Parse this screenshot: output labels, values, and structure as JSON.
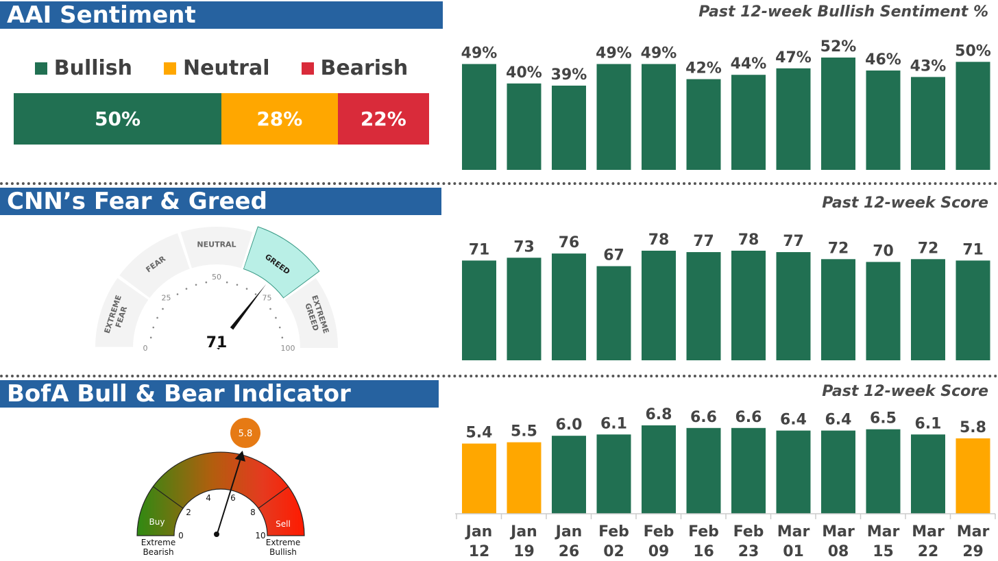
{
  "sections": {
    "aai": {
      "header": "AAI Sentiment",
      "chart_title": "Past 12-week Bullish Sentiment %",
      "legend": [
        {
          "label": "Bullish",
          "color": "#217052"
        },
        {
          "label": "Neutral",
          "color": "#ffa700"
        },
        {
          "label": "Bearish",
          "color": "#d92b3a"
        }
      ],
      "stacked": [
        {
          "label": "50%",
          "value": 50,
          "color": "#217052"
        },
        {
          "label": "28%",
          "value": 28,
          "color": "#ffa700"
        },
        {
          "label": "22%",
          "value": 22,
          "color": "#d92b3a"
        }
      ]
    },
    "cnn": {
      "header": "CNN’s Fear & Greed",
      "chart_title": "Past 12-week Score",
      "gauge": {
        "value": 71,
        "value_label": "71",
        "ticks": [
          "0",
          "25",
          "50",
          "75",
          "100"
        ],
        "zones": [
          "EXTREME FEAR",
          "FEAR",
          "NEUTRAL",
          "GREED",
          "EXTREME GREED"
        ],
        "active_zone": "GREED",
        "active_color": "#b9efe6"
      }
    },
    "bofa": {
      "header": "BofA Bull & Bear Indicator",
      "chart_title": "Past 12-week Score",
      "gauge": {
        "value": 5.8,
        "value_label": "5.8",
        "ticks": [
          "0",
          "2",
          "4",
          "6",
          "8",
          "10"
        ],
        "buy_label": "Buy",
        "sell_label": "Sell",
        "left_caption": "Extreme Bearish",
        "right_caption": "Extreme Bullish"
      }
    }
  },
  "colors": {
    "bar_green": "#217052",
    "bar_yellow": "#ffa700",
    "header_blue": "#2662a0"
  },
  "chart_data": [
    {
      "type": "bar",
      "title": "Past 12-week Bullish Sentiment %",
      "categories": [
        "Jan 12",
        "Jan 19",
        "Jan 26",
        "Feb 02",
        "Feb 09",
        "Feb 16",
        "Feb 23",
        "Mar 01",
        "Mar 08",
        "Mar 15",
        "Mar 22",
        "Mar 29"
      ],
      "values": [
        49,
        40,
        39,
        49,
        49,
        42,
        44,
        47,
        52,
        46,
        43,
        50
      ],
      "labels": [
        "49%",
        "40%",
        "39%",
        "49%",
        "49%",
        "42%",
        "44%",
        "47%",
        "52%",
        "46%",
        "43%",
        "50%"
      ],
      "ylim": [
        0,
        52
      ]
    },
    {
      "type": "bar",
      "title": "Past 12-week Score",
      "categories": [
        "Jan 12",
        "Jan 19",
        "Jan 26",
        "Feb 02",
        "Feb 09",
        "Feb 16",
        "Feb 23",
        "Mar 01",
        "Mar 08",
        "Mar 15",
        "Mar 22",
        "Mar 29"
      ],
      "values": [
        71,
        73,
        76,
        67,
        78,
        77,
        78,
        77,
        72,
        70,
        72,
        71
      ],
      "ylim": [
        0,
        78
      ]
    },
    {
      "type": "bar",
      "title": "Past 12-week Score",
      "categories": [
        "Jan 12",
        "Jan 19",
        "Jan 26",
        "Feb 02",
        "Feb 09",
        "Feb 16",
        "Feb 23",
        "Mar 01",
        "Mar 08",
        "Mar 15",
        "Mar 22",
        "Mar 29"
      ],
      "x_labels": [
        [
          "Jan",
          "12"
        ],
        [
          "Jan",
          "19"
        ],
        [
          "Jan",
          "26"
        ],
        [
          "Feb",
          "02"
        ],
        [
          "Feb",
          "09"
        ],
        [
          "Feb",
          "16"
        ],
        [
          "Feb",
          "23"
        ],
        [
          "Mar",
          "01"
        ],
        [
          "Mar",
          "08"
        ],
        [
          "Mar",
          "15"
        ],
        [
          "Mar",
          "22"
        ],
        [
          "Mar",
          "29"
        ]
      ],
      "values": [
        5.4,
        5.5,
        6.0,
        6.1,
        6.8,
        6.6,
        6.6,
        6.4,
        6.4,
        6.5,
        6.1,
        5.8
      ],
      "labels": [
        "5.4",
        "5.5",
        "6.0",
        "6.1",
        "6.8",
        "6.6",
        "6.6",
        "6.4",
        "6.4",
        "6.5",
        "6.1",
        "5.8"
      ],
      "colors": [
        "#ffa700",
        "#ffa700",
        "#217052",
        "#217052",
        "#217052",
        "#217052",
        "#217052",
        "#217052",
        "#217052",
        "#217052",
        "#217052",
        "#ffa700"
      ],
      "ylim": [
        0,
        6.8
      ]
    }
  ]
}
